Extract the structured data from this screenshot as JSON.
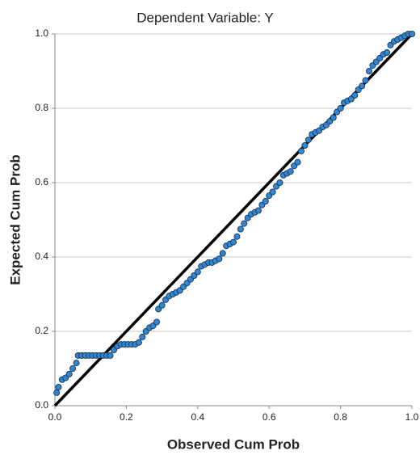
{
  "chart_data": {
    "type": "scatter",
    "title": "Dependent Variable: Y",
    "xlabel": "Observed Cum Prob",
    "ylabel": "Expected Cum Prob",
    "color": "#2e86d6",
    "reference_line_color": "#000000",
    "grid": true,
    "xlim": [
      0,
      1
    ],
    "ylim": [
      0,
      1
    ],
    "xticks": [
      {
        "value": 0,
        "label": "0.0"
      },
      {
        "value": 0.2,
        "label": "0.2"
      },
      {
        "value": 0.4,
        "label": "0.4"
      },
      {
        "value": 0.6,
        "label": "0.6"
      },
      {
        "value": 0.8,
        "label": "0.8"
      },
      {
        "value": 1,
        "label": "1.0"
      }
    ],
    "yticks": [
      {
        "value": 0,
        "label": "0.0"
      },
      {
        "value": 0.2,
        "label": "0.2"
      },
      {
        "value": 0.4,
        "label": "0.4"
      },
      {
        "value": 0.6,
        "label": "0.6"
      },
      {
        "value": 0.8,
        "label": "0.8"
      },
      {
        "value": 1,
        "label": "1.0"
      }
    ],
    "x": [
      0.005,
      0.01,
      0.02,
      0.03,
      0.04,
      0.05,
      0.06,
      0.065,
      0.075,
      0.085,
      0.095,
      0.105,
      0.115,
      0.125,
      0.135,
      0.145,
      0.155,
      0.165,
      0.175,
      0.185,
      0.195,
      0.205,
      0.215,
      0.225,
      0.235,
      0.245,
      0.255,
      0.265,
      0.275,
      0.285,
      0.29,
      0.3,
      0.31,
      0.32,
      0.33,
      0.34,
      0.35,
      0.36,
      0.37,
      0.38,
      0.39,
      0.4,
      0.41,
      0.42,
      0.43,
      0.44,
      0.45,
      0.46,
      0.47,
      0.48,
      0.49,
      0.5,
      0.51,
      0.52,
      0.53,
      0.54,
      0.55,
      0.56,
      0.57,
      0.58,
      0.59,
      0.6,
      0.61,
      0.62,
      0.63,
      0.64,
      0.65,
      0.66,
      0.67,
      0.68,
      0.69,
      0.7,
      0.71,
      0.72,
      0.73,
      0.74,
      0.75,
      0.76,
      0.77,
      0.78,
      0.79,
      0.8,
      0.81,
      0.82,
      0.83,
      0.84,
      0.85,
      0.86,
      0.87,
      0.88,
      0.89,
      0.9,
      0.91,
      0.92,
      0.93,
      0.94,
      0.95,
      0.96,
      0.97,
      0.98,
      0.99,
      1.0
    ],
    "values": [
      0.035,
      0.05,
      0.07,
      0.075,
      0.085,
      0.1,
      0.115,
      0.135,
      0.135,
      0.135,
      0.135,
      0.135,
      0.135,
      0.135,
      0.135,
      0.135,
      0.135,
      0.15,
      0.16,
      0.165,
      0.165,
      0.165,
      0.165,
      0.165,
      0.17,
      0.185,
      0.2,
      0.21,
      0.215,
      0.225,
      0.26,
      0.27,
      0.285,
      0.295,
      0.3,
      0.305,
      0.31,
      0.32,
      0.33,
      0.34,
      0.35,
      0.36,
      0.375,
      0.38,
      0.385,
      0.385,
      0.39,
      0.395,
      0.41,
      0.43,
      0.435,
      0.44,
      0.455,
      0.475,
      0.49,
      0.505,
      0.515,
      0.52,
      0.525,
      0.54,
      0.55,
      0.565,
      0.575,
      0.59,
      0.6,
      0.62,
      0.625,
      0.63,
      0.645,
      0.655,
      0.685,
      0.7,
      0.715,
      0.73,
      0.735,
      0.74,
      0.75,
      0.755,
      0.765,
      0.775,
      0.79,
      0.8,
      0.815,
      0.82,
      0.825,
      0.835,
      0.85,
      0.86,
      0.875,
      0.9,
      0.915,
      0.925,
      0.935,
      0.945,
      0.95,
      0.97,
      0.98,
      0.985,
      0.99,
      0.995,
      1.0,
      1.0
    ]
  }
}
